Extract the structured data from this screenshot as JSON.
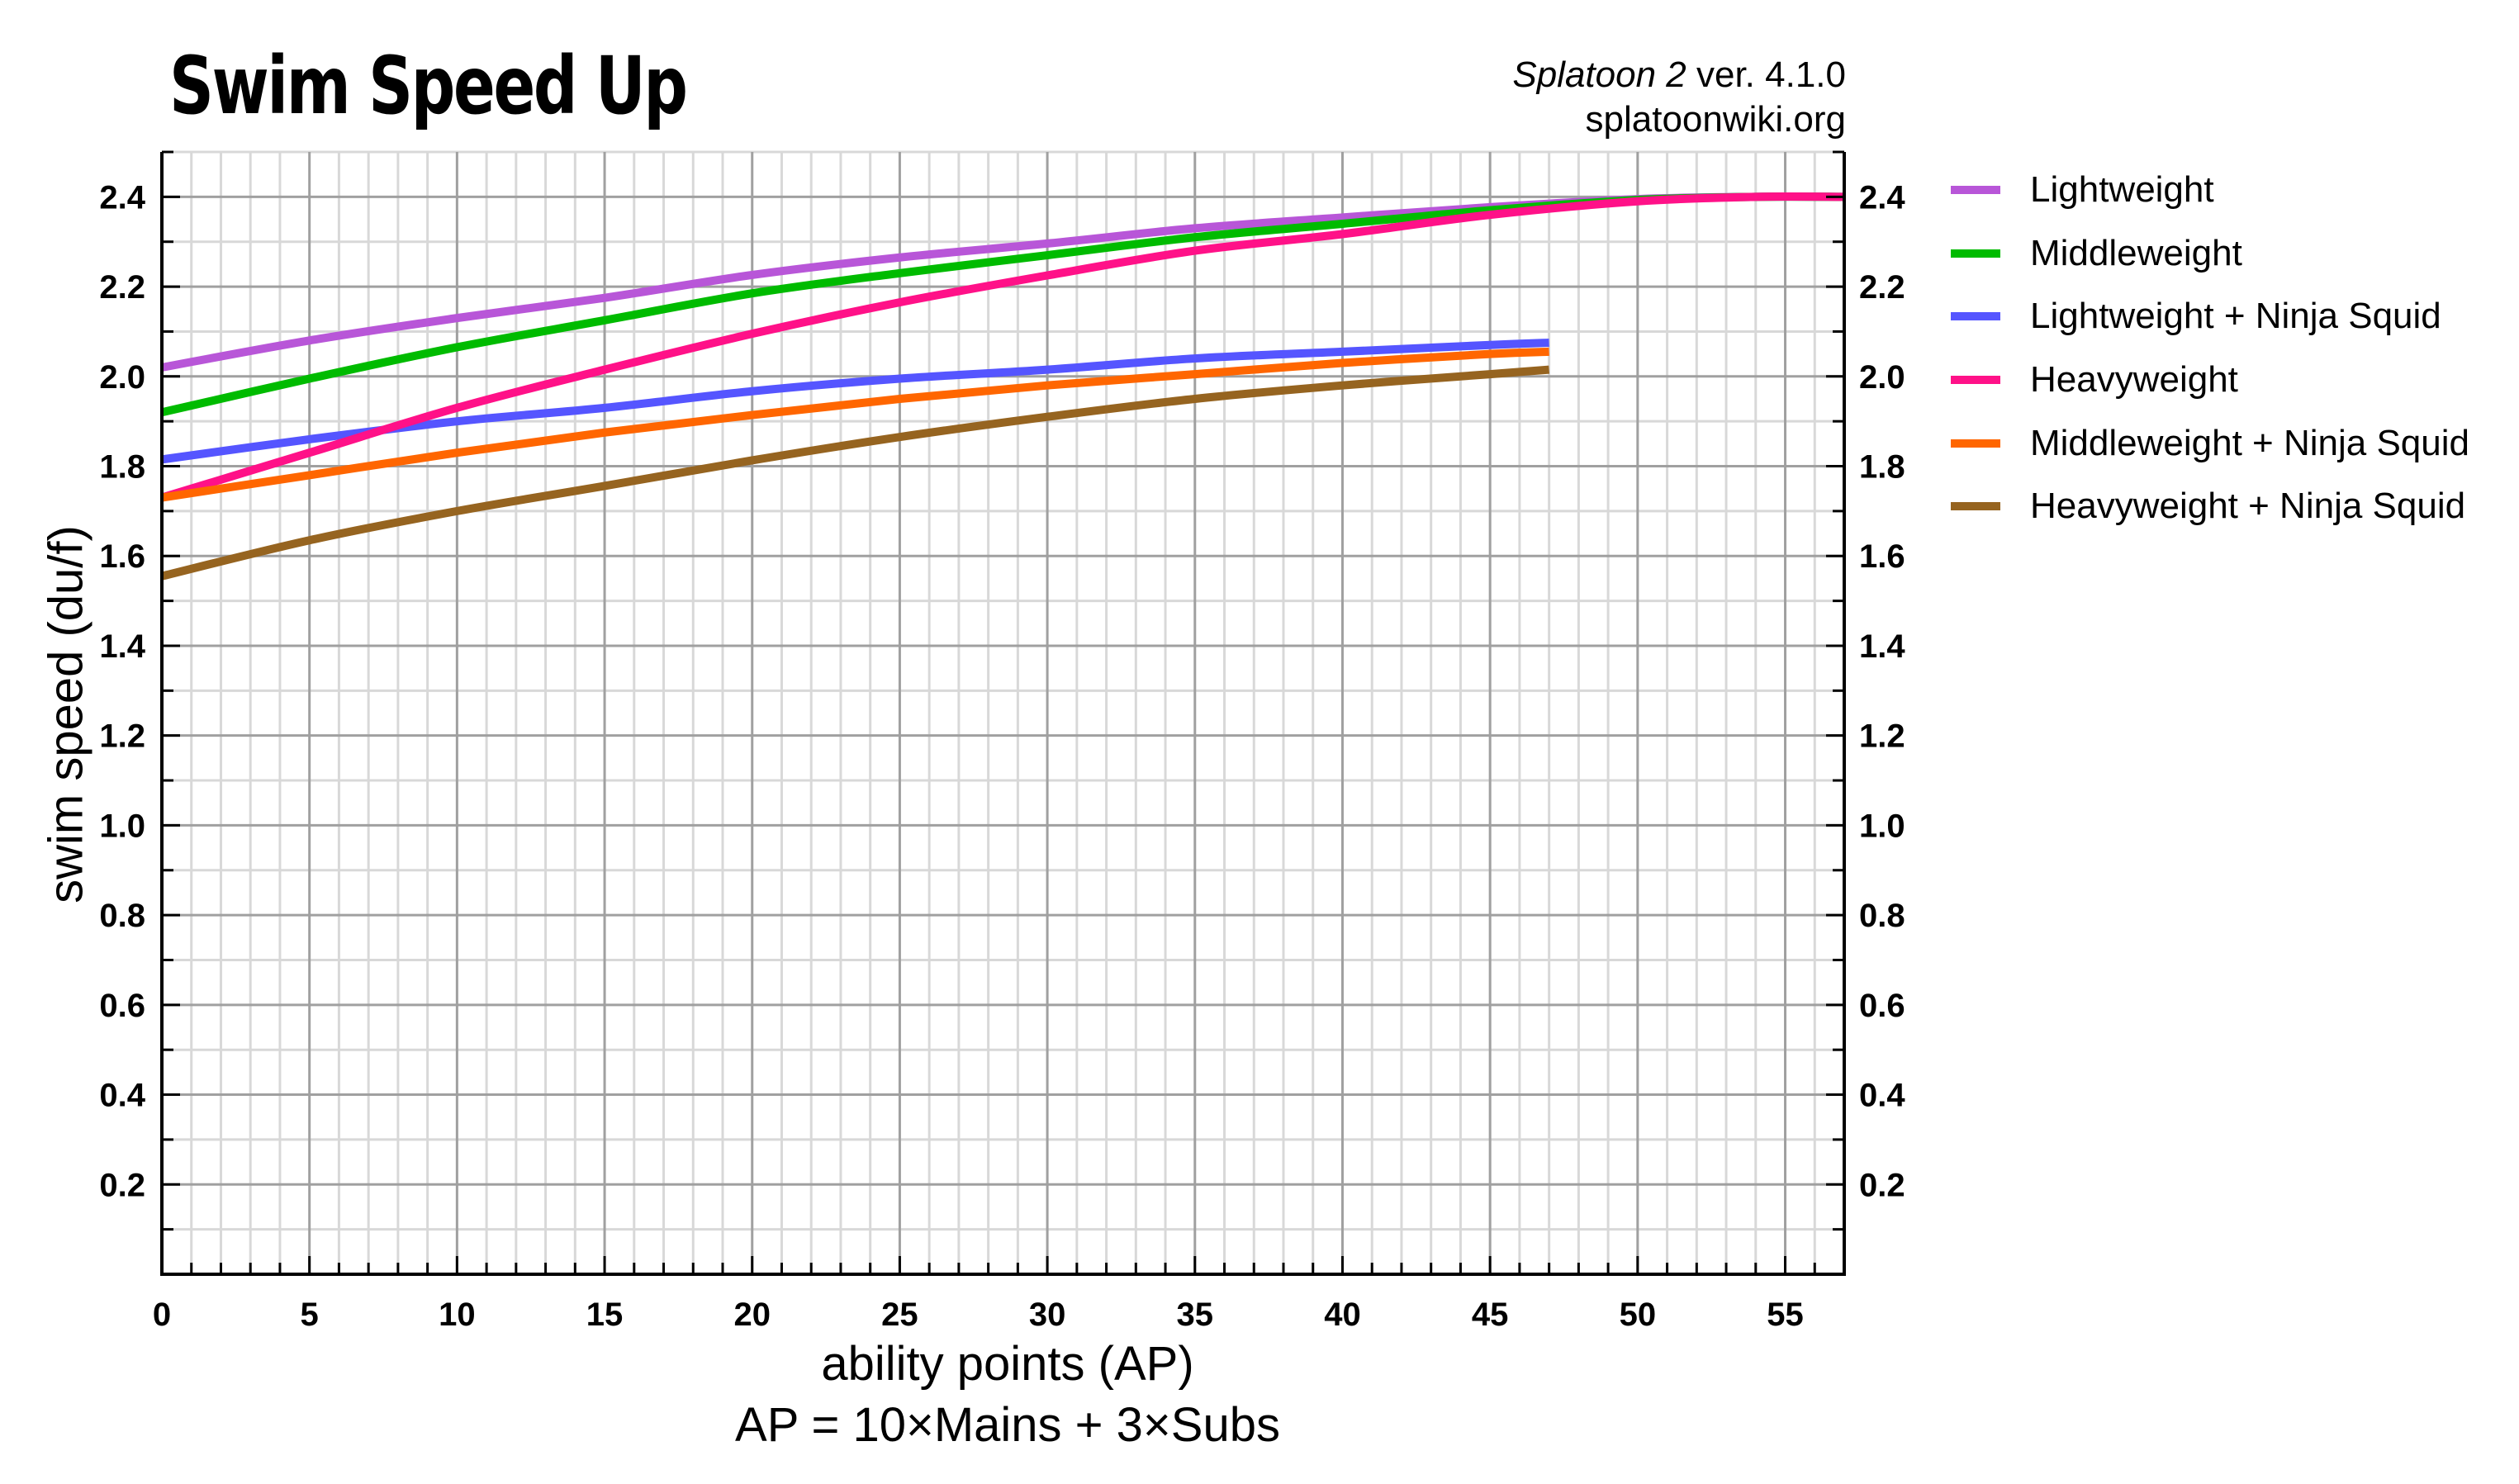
{
  "header": {
    "title": "Swim Speed Up",
    "game": "Splatoon 2",
    "version": " ver. 4.1.0",
    "source": "splatoonwiki.org"
  },
  "axes": {
    "xlabel": "ability points (AP)",
    "xlabel_note": "AP = 10×Mains + 3×Subs",
    "ylabel": "swim speed (du/f)"
  },
  "chart_data": {
    "type": "line",
    "title": "Swim Speed Up",
    "subtitle": "Splatoon 2 ver. 4.1.0 — splatoonwiki.org",
    "xlabel": "ability points (AP)",
    "xlabel_note": "AP = 10×Mains + 3×Subs",
    "ylabel": "swim speed (du/f)",
    "xlim": [
      0,
      57
    ],
    "ylim": [
      0,
      2.5
    ],
    "x_ticks": [
      0,
      5,
      10,
      15,
      20,
      25,
      30,
      35,
      40,
      45,
      50,
      55
    ],
    "y_ticks": [
      0.2,
      0.4,
      0.6,
      0.8,
      1.0,
      1.2,
      1.4,
      1.6,
      1.8,
      2.0,
      2.2,
      2.4
    ],
    "y_ticks_mirrored_right": true,
    "grid": true,
    "legend_position": "right",
    "series": [
      {
        "name": "Lightweight",
        "color": "#b856d8",
        "x": [
          0,
          5,
          10,
          15,
          20,
          25,
          30,
          35,
          40,
          45,
          50,
          54,
          57
        ],
        "y": [
          2.02,
          2.08,
          2.13,
          2.175,
          2.226,
          2.265,
          2.296,
          2.33,
          2.354,
          2.377,
          2.395,
          2.4,
          2.4
        ]
      },
      {
        "name": "Middleweight",
        "color": "#00bb00",
        "x": [
          0,
          5,
          10,
          15,
          20,
          25,
          30,
          35,
          40,
          45,
          50,
          54,
          57
        ],
        "y": [
          1.92,
          1.995,
          2.065,
          2.125,
          2.185,
          2.23,
          2.27,
          2.31,
          2.34,
          2.37,
          2.393,
          2.4,
          2.4
        ]
      },
      {
        "name": "Lightweight + Ninja Squid",
        "color": "#5555ff",
        "x": [
          0,
          5,
          10,
          15,
          20,
          25,
          30,
          35,
          40,
          45,
          47
        ],
        "y": [
          1.815,
          1.86,
          1.9,
          1.93,
          1.967,
          1.995,
          2.015,
          2.04,
          2.055,
          2.07,
          2.075
        ]
      },
      {
        "name": "Heavyweight",
        "color": "#ff1188",
        "x": [
          0,
          5,
          10,
          15,
          20,
          25,
          30,
          35,
          40,
          45,
          50,
          54,
          57
        ],
        "y": [
          1.73,
          1.83,
          1.93,
          2.015,
          2.095,
          2.165,
          2.225,
          2.28,
          2.317,
          2.36,
          2.39,
          2.4,
          2.4
        ]
      },
      {
        "name": "Middleweight + Ninja Squid",
        "color": "#ff6600",
        "x": [
          0,
          5,
          10,
          15,
          20,
          25,
          30,
          35,
          40,
          45,
          47
        ],
        "y": [
          1.73,
          1.78,
          1.83,
          1.875,
          1.914,
          1.95,
          1.98,
          2.005,
          2.03,
          2.05,
          2.055
        ]
      },
      {
        "name": "Heavyweight + Ninja Squid",
        "color": "#966420",
        "x": [
          0,
          5,
          10,
          15,
          20,
          25,
          30,
          35,
          40,
          45,
          47
        ],
        "y": [
          1.555,
          1.635,
          1.7,
          1.756,
          1.813,
          1.865,
          1.91,
          1.95,
          1.98,
          2.005,
          2.015
        ]
      }
    ]
  }
}
